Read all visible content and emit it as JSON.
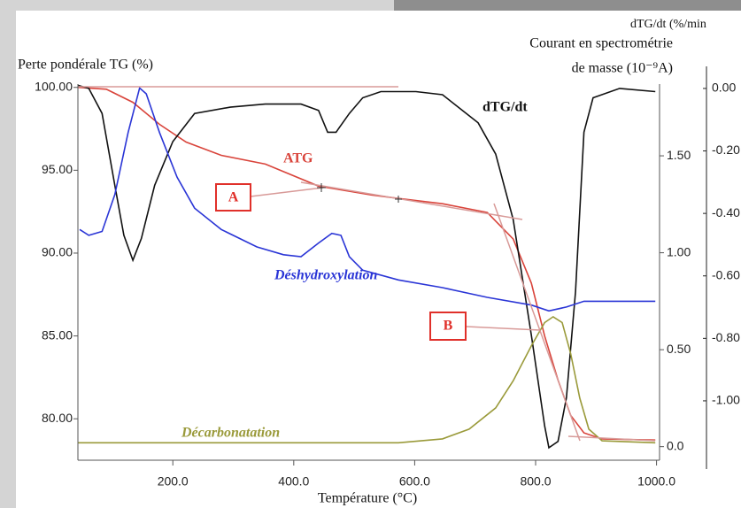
{
  "chart_data": {
    "type": "line",
    "y_label": "Perte pondérale TG (%)",
    "y2_label": [
      "Courant en spectrométrie",
      "de masse (10⁻⁹A)"
    ],
    "y3_label": "dTG/dt (%/min",
    "x_label": "Température (°C)",
    "annotations": [
      "A",
      "B"
    ],
    "xlim": [
      43,
      1005
    ],
    "xticks": [
      {
        "value": 200,
        "label": "200.0"
      },
      {
        "value": 400,
        "label": "400.0"
      },
      {
        "value": 600,
        "label": "600.0"
      },
      {
        "value": 800,
        "label": "800.0"
      },
      {
        "value": 1000,
        "label": "1000.0"
      }
    ],
    "ylim": [
      77.5,
      100.2
    ],
    "yticks": [
      {
        "value": 100,
        "label": "100.00"
      },
      {
        "value": 95,
        "label": "95.00"
      },
      {
        "value": 90,
        "label": "90.00"
      },
      {
        "value": 85,
        "label": "85.00"
      },
      {
        "value": 80,
        "label": "80.00"
      }
    ],
    "y2lim": [
      -0.07,
      1.87
    ],
    "y2ticks": [
      {
        "value": 1.5,
        "label": "1.50"
      },
      {
        "value": 1,
        "label": "1.00"
      },
      {
        "value": 0.5,
        "label": "0.50"
      },
      {
        "value": 0,
        "label": "0.0"
      }
    ],
    "y3lim": [
      -1.19,
      0.014
    ],
    "y3ticks": [
      {
        "value": 0,
        "label": "0.00"
      },
      {
        "value": -0.2,
        "label": "-0.20"
      },
      {
        "value": -0.4,
        "label": "-0.40"
      },
      {
        "value": -0.6,
        "label": "-0.60"
      },
      {
        "value": -0.8,
        "label": "-0.80"
      },
      {
        "value": -1,
        "label": "-1.00"
      }
    ],
    "series": [
      {
        "name": "ATG",
        "color": "#d9443b",
        "x": [
          43,
          90,
          134,
          178,
          222,
          280,
          353,
          441,
          529,
          573,
          646,
          720,
          763,
          793,
          815,
          837,
          858,
          880,
          910,
          998
        ],
        "values": [
          100,
          99.89,
          99.1,
          97.77,
          96.7,
          95.9,
          95.37,
          94.04,
          93.51,
          93.3,
          92.98,
          92.45,
          90.85,
          88.19,
          85,
          82.34,
          80.21,
          79.15,
          78.78,
          78.72
        ]
      },
      {
        "name": "dTG/dt",
        "color": "#111111",
        "axis": "y3",
        "x": [
          43,
          61,
          83,
          104,
          119,
          134,
          148,
          170,
          200,
          236,
          295,
          353,
          412,
          441,
          456,
          470,
          492,
          514,
          544,
          602,
          646,
          705,
          734,
          763,
          793,
          815,
          822,
          837,
          851,
          866,
          880,
          895,
          939,
          998
        ],
        "values": [
          0.01,
          0,
          -0.08,
          -0.31,
          -0.47,
          -0.55,
          -0.48,
          -0.31,
          -0.17,
          -0.08,
          -0.06,
          -0.05,
          -0.05,
          -0.07,
          -0.14,
          -0.14,
          -0.08,
          -0.03,
          -0.01,
          -0.01,
          -0.02,
          -0.11,
          -0.21,
          -0.42,
          -0.79,
          -1.08,
          -1.15,
          -1.13,
          -0.99,
          -0.65,
          -0.14,
          -0.03,
          0,
          -0.01
        ]
      },
      {
        "name": "Déshydroxylation",
        "color": "#2a35d6",
        "axis": "y2",
        "x": [
          46,
          61,
          83,
          104,
          126,
          145,
          156,
          178,
          207,
          236,
          280,
          339,
          383,
          412,
          441,
          463,
          478,
          492,
          514,
          573,
          646,
          720,
          793,
          822,
          851,
          880,
          939,
          998
        ],
        "values": [
          1.12,
          1.09,
          1.11,
          1.3,
          1.62,
          1.85,
          1.82,
          1.62,
          1.39,
          1.23,
          1.12,
          1.03,
          0.99,
          0.98,
          1.05,
          1.1,
          1.09,
          0.98,
          0.91,
          0.86,
          0.82,
          0.77,
          0.73,
          0.7,
          0.72,
          0.75,
          0.75,
          0.75
        ]
      },
      {
        "name": "Décarbonatation",
        "color": "#9a9a3a",
        "axis": "y2",
        "x": [
          43,
          353,
          573,
          646,
          690,
          734,
          763,
          793,
          815,
          829,
          844,
          858,
          873,
          888,
          910,
          998
        ],
        "values": [
          0.02,
          0.02,
          0.02,
          0.04,
          0.09,
          0.2,
          0.34,
          0.52,
          0.64,
          0.67,
          0.64,
          0.48,
          0.25,
          0.09,
          0.03,
          0.02
        ]
      }
    ]
  }
}
